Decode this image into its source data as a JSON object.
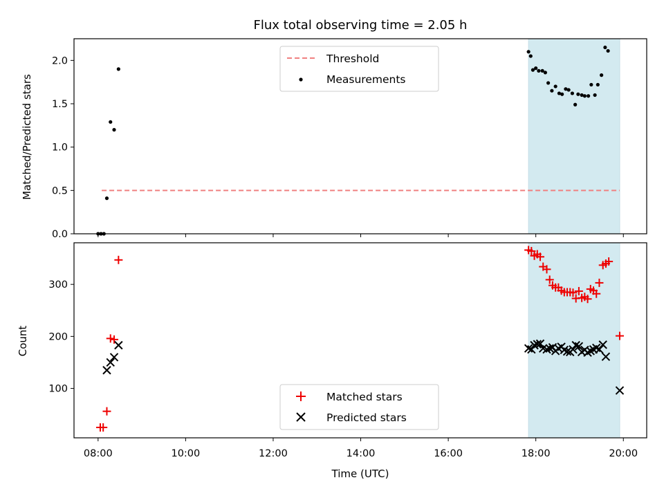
{
  "chart_data": [
    {
      "type": "scatter",
      "title": "Flux total observing time = 2.05 h",
      "ylabel": "Matched/Predicted stars",
      "ylim": [
        0,
        2.25
      ],
      "yticks": [
        "0.0",
        "0.5",
        "1.0",
        "1.5",
        "2.0"
      ],
      "shaded_region": {
        "x_start": "17:50",
        "x_end": "19:55",
        "color": "#d3eaf0"
      },
      "threshold": {
        "name": "Threshold",
        "y": 0.5,
        "x_start": "08:05",
        "x_end": "19:55",
        "color": "#f08080"
      },
      "legend": {
        "position": "top-center",
        "entries": [
          "Threshold",
          "Measurements"
        ]
      },
      "series": [
        {
          "name": "Measurements",
          "marker": "dot",
          "color": "#000000",
          "points": [
            [
              "08:00",
              0.0
            ],
            [
              "08:04",
              0.0
            ],
            [
              "08:08",
              0.0
            ],
            [
              "08:12",
              0.41
            ],
            [
              "08:17",
              1.29
            ],
            [
              "08:22",
              1.2
            ],
            [
              "08:28",
              1.9
            ],
            [
              "17:50",
              2.1
            ],
            [
              "17:53",
              2.05
            ],
            [
              "17:56",
              1.89
            ],
            [
              "18:00",
              1.91
            ],
            [
              "18:04",
              1.88
            ],
            [
              "18:09",
              1.88
            ],
            [
              "18:13",
              1.86
            ],
            [
              "18:17",
              1.74
            ],
            [
              "18:22",
              1.65
            ],
            [
              "18:27",
              1.7
            ],
            [
              "18:32",
              1.62
            ],
            [
              "18:36",
              1.61
            ],
            [
              "18:41",
              1.67
            ],
            [
              "18:45",
              1.66
            ],
            [
              "18:50",
              1.62
            ],
            [
              "18:54",
              1.49
            ],
            [
              "18:58",
              1.61
            ],
            [
              "19:03",
              1.6
            ],
            [
              "19:07",
              1.59
            ],
            [
              "19:12",
              1.59
            ],
            [
              "19:16",
              1.72
            ],
            [
              "19:21",
              1.6
            ],
            [
              "19:25",
              1.72
            ],
            [
              "19:30",
              1.83
            ],
            [
              "19:35",
              2.15
            ],
            [
              "19:39",
              2.11
            ]
          ]
        }
      ]
    },
    {
      "type": "scatter",
      "xlabel": "Time (UTC)",
      "ylabel": "Count",
      "xlim": [
        "07:27",
        "20:32"
      ],
      "xticks": [
        "08:00",
        "10:00",
        "12:00",
        "14:00",
        "16:00",
        "18:00",
        "20:00"
      ],
      "ylim": [
        5,
        380
      ],
      "yticks": [
        "100",
        "200",
        "300"
      ],
      "shaded_region": {
        "x_start": "17:50",
        "x_end": "19:55",
        "color": "#d3eaf0"
      },
      "legend": {
        "position": "bottom-center",
        "entries": [
          "Matched stars",
          "Predicted stars"
        ]
      },
      "series": [
        {
          "name": "Matched stars",
          "marker": "plus",
          "color": "#ee0000",
          "points": [
            [
              "08:03",
              25
            ],
            [
              "08:07",
              25
            ],
            [
              "08:12",
              56
            ],
            [
              "08:17",
              196
            ],
            [
              "08:22",
              194
            ],
            [
              "08:28",
              347
            ],
            [
              "17:50",
              366
            ],
            [
              "17:54",
              364
            ],
            [
              "17:58",
              355
            ],
            [
              "18:02",
              358
            ],
            [
              "18:06",
              353
            ],
            [
              "18:10",
              334
            ],
            [
              "18:15",
              329
            ],
            [
              "18:19",
              309
            ],
            [
              "18:23",
              298
            ],
            [
              "18:27",
              294
            ],
            [
              "18:31",
              294
            ],
            [
              "18:35",
              288
            ],
            [
              "18:39",
              285
            ],
            [
              "18:43",
              285
            ],
            [
              "18:47",
              285
            ],
            [
              "18:51",
              284
            ],
            [
              "18:55",
              273
            ],
            [
              "18:59",
              287
            ],
            [
              "19:03",
              274
            ],
            [
              "19:07",
              276
            ],
            [
              "19:11",
              272
            ],
            [
              "19:15",
              291
            ],
            [
              "19:19",
              288
            ],
            [
              "19:23",
              282
            ],
            [
              "19:27",
              303
            ],
            [
              "19:32",
              337
            ],
            [
              "19:36",
              340
            ],
            [
              "19:40",
              344
            ],
            [
              "19:55",
              201
            ]
          ]
        },
        {
          "name": "Predicted stars",
          "marker": "x",
          "color": "#000000",
          "points": [
            [
              "08:12",
              135
            ],
            [
              "08:17",
              150
            ],
            [
              "08:22",
              160
            ],
            [
              "08:28",
              183
            ],
            [
              "17:50",
              177
            ],
            [
              "17:54",
              175
            ],
            [
              "17:58",
              183
            ],
            [
              "18:02",
              185
            ],
            [
              "18:06",
              186
            ],
            [
              "18:10",
              177
            ],
            [
              "18:15",
              175
            ],
            [
              "18:19",
              177
            ],
            [
              "18:23",
              179
            ],
            [
              "18:27",
              172
            ],
            [
              "18:31",
              177
            ],
            [
              "18:35",
              180
            ],
            [
              "18:39",
              174
            ],
            [
              "18:43",
              171
            ],
            [
              "18:47",
              170
            ],
            [
              "18:51",
              175
            ],
            [
              "18:55",
              183
            ],
            [
              "18:59",
              181
            ],
            [
              "19:03",
              170
            ],
            [
              "19:07",
              174
            ],
            [
              "19:11",
              169
            ],
            [
              "19:15",
              172
            ],
            [
              "19:19",
              175
            ],
            [
              "19:23",
              178
            ],
            [
              "19:27",
              175
            ],
            [
              "19:32",
              184
            ],
            [
              "19:36",
              161
            ],
            [
              "19:55",
              96
            ]
          ]
        }
      ]
    }
  ]
}
